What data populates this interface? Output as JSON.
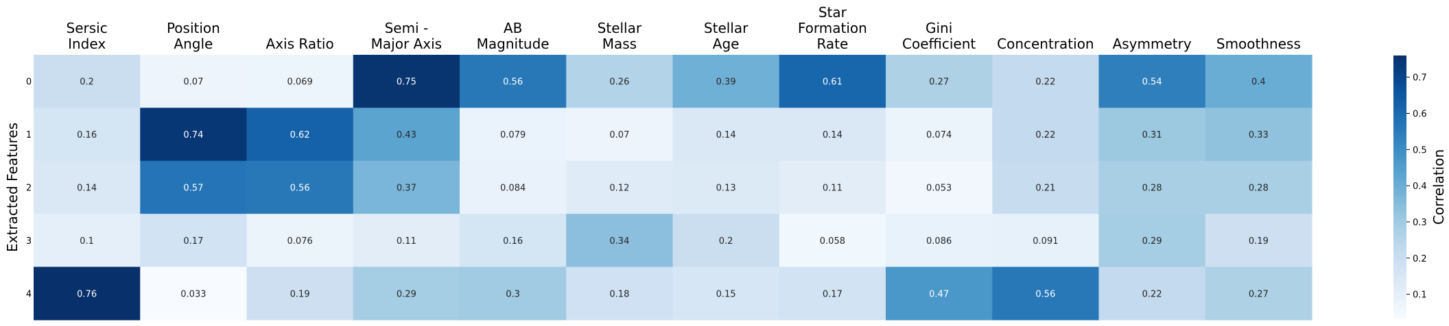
{
  "chart_data": {
    "type": "heatmap",
    "ylabel": "Extracted Features",
    "colorbar_label": "Correlation",
    "colormap": "Blues",
    "color_range": [
      0.033,
      0.76
    ],
    "colorbar_ticks": [
      "0.1",
      "0.2",
      "0.3",
      "0.4",
      "0.5",
      "0.6",
      "0.7"
    ],
    "columns": [
      [
        "Sersic",
        "Index"
      ],
      [
        "Position",
        "Angle"
      ],
      [
        "Axis Ratio"
      ],
      [
        "Semi -",
        "Major Axis"
      ],
      [
        "AB",
        "Magnitude"
      ],
      [
        "Stellar",
        "Mass"
      ],
      [
        "Stellar",
        "Age"
      ],
      [
        "Star",
        "Formation",
        "Rate"
      ],
      [
        "Gini",
        "Coefficient"
      ],
      [
        "Concentration"
      ],
      [
        "Asymmetry"
      ],
      [
        "Smoothness"
      ]
    ],
    "rows": [
      "0",
      "1",
      "2",
      "3",
      "4"
    ],
    "values": [
      [
        "0.2",
        "0.07",
        "0.069",
        "0.75",
        "0.56",
        "0.26",
        "0.39",
        "0.61",
        "0.27",
        "0.22",
        "0.54",
        "0.4"
      ],
      [
        "0.16",
        "0.74",
        "0.62",
        "0.43",
        "0.079",
        "0.07",
        "0.14",
        "0.14",
        "0.074",
        "0.22",
        "0.31",
        "0.33"
      ],
      [
        "0.14",
        "0.57",
        "0.56",
        "0.37",
        "0.084",
        "0.12",
        "0.13",
        "0.11",
        "0.053",
        "0.21",
        "0.28",
        "0.28"
      ],
      [
        "0.1",
        "0.17",
        "0.076",
        "0.11",
        "0.16",
        "0.34",
        "0.2",
        "0.058",
        "0.086",
        "0.091",
        "0.29",
        "0.19"
      ],
      [
        "0.76",
        "0.033",
        "0.19",
        "0.29",
        "0.3",
        "0.18",
        "0.15",
        "0.17",
        "0.47",
        "0.56",
        "0.22",
        "0.27"
      ]
    ]
  }
}
